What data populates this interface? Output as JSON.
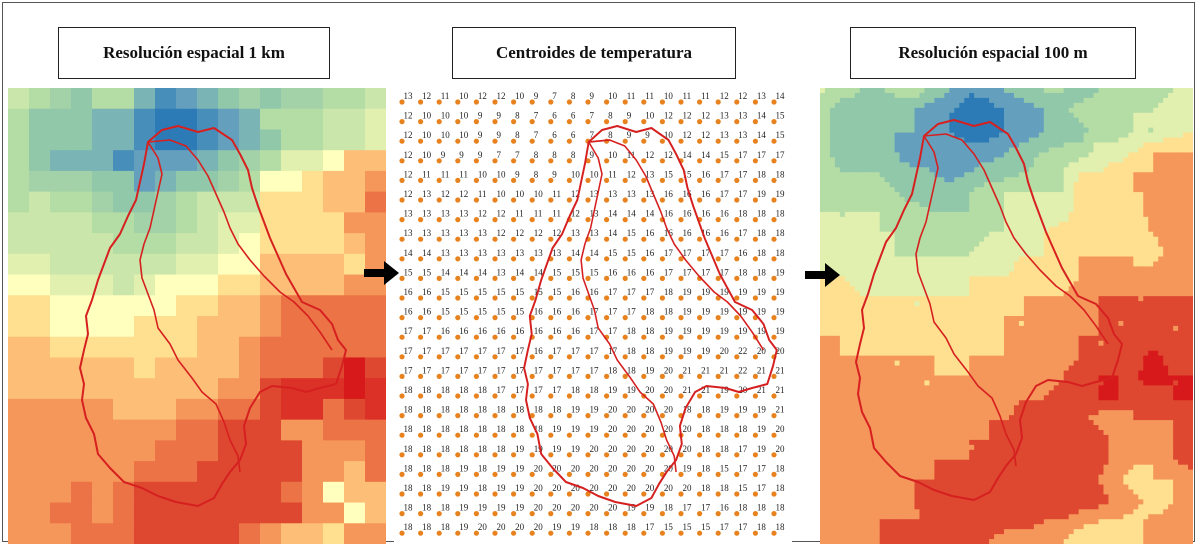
{
  "titles": {
    "left": "Resolución espacial 1 km",
    "middle": "Centroides de temperatura",
    "right": "Resolución espacial 100 m"
  },
  "colors": {
    "boundary": "#d62020",
    "centroid_dot": "#e8821e",
    "arrow": "#000000"
  },
  "temperature_grid": [
    [
      13,
      12,
      11,
      10,
      12,
      12,
      10,
      9,
      7,
      8,
      9,
      10,
      11,
      11,
      10,
      11,
      11,
      12,
      12,
      13,
      14
    ],
    [
      12,
      10,
      10,
      10,
      9,
      9,
      8,
      7,
      6,
      6,
      7,
      8,
      9,
      10,
      12,
      12,
      12,
      13,
      13,
      14,
      15
    ],
    [
      12,
      10,
      10,
      10,
      9,
      9,
      8,
      7,
      6,
      6,
      7,
      8,
      9,
      9,
      10,
      12,
      12,
      13,
      13,
      14,
      15
    ],
    [
      12,
      10,
      9,
      9,
      9,
      7,
      7,
      8,
      8,
      8,
      9,
      10,
      11,
      12,
      12,
      14,
      14,
      15,
      17,
      17,
      17
    ],
    [
      12,
      11,
      11,
      11,
      10,
      10,
      9,
      8,
      9,
      10,
      10,
      11,
      12,
      13,
      15,
      15,
      16,
      17,
      17,
      18,
      18
    ],
    [
      12,
      13,
      12,
      12,
      11,
      10,
      10,
      10,
      11,
      12,
      13,
      13,
      13,
      13,
      16,
      16,
      16,
      17,
      17,
      19,
      19
    ],
    [
      13,
      13,
      13,
      13,
      12,
      12,
      11,
      11,
      11,
      12,
      13,
      14,
      14,
      14,
      16,
      16,
      16,
      16,
      18,
      18,
      18
    ],
    [
      13,
      13,
      13,
      13,
      13,
      12,
      12,
      12,
      12,
      13,
      13,
      14,
      15,
      16,
      16,
      16,
      16,
      16,
      17,
      18,
      18
    ],
    [
      14,
      14,
      13,
      13,
      13,
      13,
      13,
      13,
      13,
      14,
      14,
      15,
      15,
      16,
      17,
      17,
      17,
      17,
      16,
      18,
      18
    ],
    [
      15,
      15,
      14,
      14,
      14,
      13,
      14,
      14,
      15,
      15,
      15,
      16,
      16,
      16,
      17,
      17,
      17,
      17,
      18,
      18,
      19
    ],
    [
      16,
      16,
      15,
      15,
      15,
      15,
      15,
      15,
      15,
      16,
      16,
      17,
      17,
      17,
      18,
      19,
      19,
      19,
      19,
      19,
      19
    ],
    [
      16,
      16,
      15,
      15,
      15,
      15,
      15,
      16,
      16,
      16,
      17,
      17,
      17,
      18,
      18,
      19,
      19,
      19,
      19,
      19,
      19
    ],
    [
      17,
      17,
      16,
      16,
      16,
      16,
      16,
      16,
      16,
      16,
      17,
      17,
      18,
      18,
      19,
      19,
      19,
      19,
      19,
      19,
      19
    ],
    [
      17,
      17,
      17,
      17,
      17,
      17,
      17,
      16,
      17,
      17,
      17,
      17,
      18,
      18,
      19,
      19,
      19,
      20,
      22,
      20,
      20
    ],
    [
      17,
      17,
      17,
      17,
      17,
      17,
      17,
      17,
      17,
      17,
      17,
      18,
      18,
      19,
      20,
      21,
      21,
      21,
      22,
      21,
      21
    ],
    [
      18,
      18,
      18,
      18,
      18,
      17,
      17,
      17,
      17,
      18,
      18,
      19,
      19,
      20,
      20,
      21,
      21,
      19,
      20,
      21,
      21
    ],
    [
      18,
      18,
      18,
      18,
      18,
      18,
      18,
      18,
      18,
      19,
      19,
      20,
      20,
      20,
      20,
      18,
      18,
      19,
      19,
      19,
      21
    ],
    [
      18,
      18,
      18,
      18,
      18,
      18,
      18,
      18,
      19,
      19,
      19,
      20,
      20,
      20,
      20,
      20,
      18,
      18,
      18,
      19,
      20
    ],
    [
      18,
      18,
      18,
      18,
      18,
      18,
      19,
      19,
      19,
      19,
      20,
      20,
      20,
      20,
      20,
      20,
      18,
      18,
      17,
      19,
      20
    ],
    [
      18,
      18,
      18,
      19,
      18,
      19,
      19,
      20,
      20,
      20,
      20,
      20,
      20,
      20,
      20,
      19,
      18,
      15,
      17,
      17,
      18
    ],
    [
      18,
      18,
      19,
      19,
      18,
      19,
      19,
      20,
      20,
      20,
      20,
      20,
      20,
      20,
      20,
      20,
      18,
      18,
      15,
      17,
      18
    ],
    [
      18,
      18,
      18,
      19,
      19,
      19,
      19,
      20,
      20,
      20,
      20,
      20,
      19,
      19,
      18,
      17,
      17,
      16,
      18,
      18,
      18
    ],
    [
      18,
      18,
      18,
      19,
      20,
      20,
      20,
      20,
      19,
      19,
      18,
      18,
      18,
      17,
      15,
      15,
      15,
      17,
      17,
      18,
      18
    ]
  ]
}
